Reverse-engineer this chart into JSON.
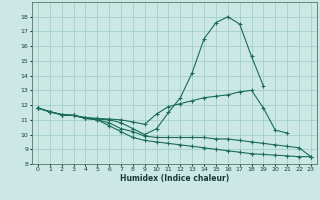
{
  "xlabel": "Humidex (Indice chaleur)",
  "bg_color": "#cce8e4",
  "grid_color": "#99ccc4",
  "line_color": "#1a6b5a",
  "xlim": [
    -0.5,
    23.5
  ],
  "ylim": [
    8,
    19
  ],
  "yticks": [
    8,
    9,
    10,
    11,
    12,
    13,
    14,
    15,
    16,
    17,
    18
  ],
  "xticks": [
    0,
    1,
    2,
    3,
    4,
    5,
    6,
    7,
    8,
    9,
    10,
    11,
    12,
    13,
    14,
    15,
    16,
    17,
    18,
    19,
    20,
    21,
    22,
    23
  ],
  "lines": [
    {
      "x": [
        0,
        1,
        2,
        3,
        4,
        5,
        6,
        7,
        8,
        9,
        10,
        11,
        12,
        13,
        14,
        15,
        16,
        17,
        18,
        19
      ],
      "y": [
        11.8,
        11.55,
        11.35,
        11.3,
        11.15,
        11.05,
        11.0,
        10.8,
        10.4,
        10.0,
        10.4,
        11.5,
        12.5,
        14.2,
        16.5,
        17.6,
        18.0,
        17.5,
        15.3,
        13.3
      ]
    },
    {
      "x": [
        0,
        1,
        2,
        3,
        4,
        5,
        6,
        7,
        8,
        9,
        10,
        11,
        12,
        13,
        14,
        15,
        16,
        17,
        18,
        19,
        20,
        21
      ],
      "y": [
        11.8,
        11.55,
        11.35,
        11.3,
        11.15,
        11.1,
        11.05,
        11.0,
        10.85,
        10.7,
        11.4,
        11.9,
        12.1,
        12.3,
        12.5,
        12.6,
        12.7,
        12.9,
        13.0,
        11.8,
        10.3,
        10.1
      ]
    },
    {
      "x": [
        0,
        1,
        2,
        3,
        4,
        5,
        6,
        7,
        8,
        9,
        10,
        11,
        12,
        13,
        14,
        15,
        16,
        17,
        18,
        19,
        20,
        21,
        22,
        23
      ],
      "y": [
        11.8,
        11.55,
        11.35,
        11.3,
        11.1,
        11.0,
        10.8,
        10.4,
        10.2,
        9.9,
        9.8,
        9.8,
        9.8,
        9.8,
        9.8,
        9.7,
        9.7,
        9.6,
        9.5,
        9.4,
        9.3,
        9.2,
        9.1,
        8.5
      ]
    },
    {
      "x": [
        0,
        1,
        2,
        3,
        4,
        5,
        6,
        7,
        8,
        9,
        10,
        11,
        12,
        13,
        14,
        15,
        16,
        17,
        18,
        19,
        20,
        21,
        22,
        23
      ],
      "y": [
        11.8,
        11.55,
        11.35,
        11.3,
        11.1,
        11.0,
        10.6,
        10.2,
        9.8,
        9.6,
        9.5,
        9.4,
        9.3,
        9.2,
        9.1,
        9.0,
        8.9,
        8.8,
        8.7,
        8.65,
        8.6,
        8.55,
        8.5,
        8.5
      ]
    }
  ]
}
